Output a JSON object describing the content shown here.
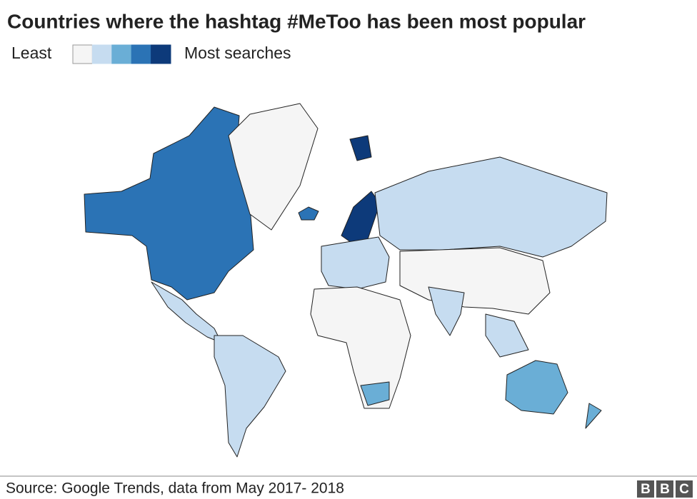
{
  "header": {
    "title": "Countries where the hashtag #MeToo has been most popular"
  },
  "legend": {
    "least": "Least",
    "most": "Most searches",
    "colors": [
      "#f5f5f5",
      "#c6dcf0",
      "#6aaed6",
      "#2b73b5",
      "#0d3a7a"
    ]
  },
  "footer": {
    "source": "Source: Google Trends, data from May 2017- 2018",
    "logo": [
      "B",
      "B",
      "C"
    ]
  }
}
